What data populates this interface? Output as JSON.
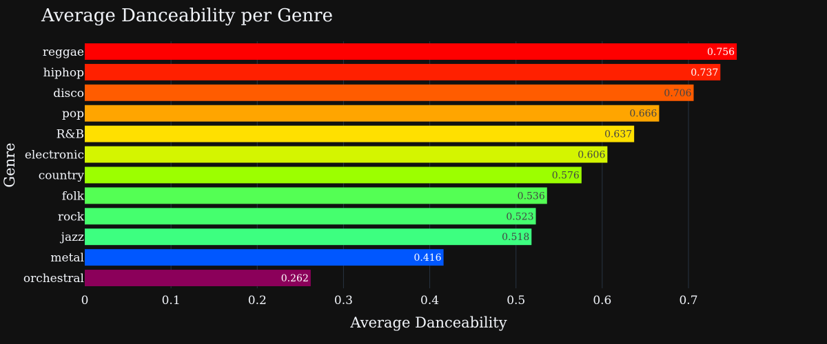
{
  "chart_data": {
    "type": "bar",
    "orientation": "horizontal",
    "title": "Average Danceability per Genre",
    "xlabel": "Average Danceability",
    "ylabel": "Genre",
    "xlim": [
      0,
      0.8
    ],
    "x_ticks": [
      0,
      0.1,
      0.2,
      0.3,
      0.4,
      0.5,
      0.6,
      0.7
    ],
    "x_tick_labels": [
      "0",
      "0.1",
      "0.2",
      "0.3",
      "0.4",
      "0.5",
      "0.6",
      "0.7"
    ],
    "grid": true,
    "background": "#111111",
    "categories": [
      "reggae",
      "hiphop",
      "disco",
      "pop",
      "R&B",
      "electronic",
      "country",
      "folk",
      "rock",
      "jazz",
      "metal",
      "orchestral"
    ],
    "values": [
      0.756,
      0.737,
      0.706,
      0.666,
      0.637,
      0.606,
      0.576,
      0.536,
      0.523,
      0.518,
      0.416,
      0.262
    ],
    "data_labels": [
      "0.756",
      "0.737",
      "0.706",
      "0.666",
      "0.637",
      "0.606",
      "0.576",
      "0.536",
      "0.523",
      "0.518",
      "0.416",
      "0.262"
    ],
    "bar_colors": [
      "#ff0000",
      "#ff2000",
      "#ff5c00",
      "#ffa500",
      "#ffe000",
      "#d4f500",
      "#9cff00",
      "#54ff54",
      "#45ff6e",
      "#3dff80",
      "#0057ff",
      "#8b005a"
    ],
    "label_colors": [
      "#ffffff",
      "#ffffff",
      "#444444",
      "#444444",
      "#444444",
      "#444444",
      "#444444",
      "#444444",
      "#444444",
      "#444444",
      "#ffffff",
      "#ffffff"
    ]
  }
}
